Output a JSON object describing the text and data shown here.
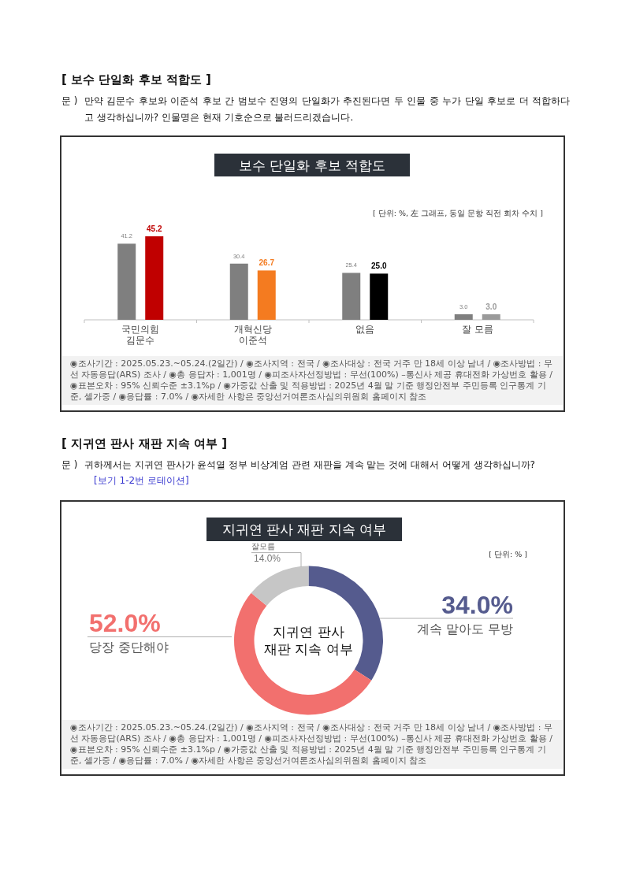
{
  "chart_data": [
    {
      "type": "bar",
      "title": "보수 단일화 후보 적합도",
      "annotations": [
        "[ 보수 단일화 후보 적합도 ]",
        "문 )",
        "만약 김문수 후보와 이준석 후보 간 범보수 진영의 단일화가 추진된다면 두 인물 중 누가 단일 후보로 더 적합하다고 생각하십니까? 인물명은 현재 기호순으로 불러드리겠습니다.",
        "[ 단위: %, 左 그래프, 동일 문항 직전 회차 수치 ]",
        "◉조사기간 : 2025.05.23.~05.24.(2일간) / ◉조사지역 : 전국 / ◉조사대상 : 전국 거주 만 18세 이상 남녀 / ◉조사방법 : 무선 자동응답(ARS) 조사 / ◉총 응답자 : 1,001명 / ◉피조사자선정방법 : 무선(100%) –통신사 제공 휴대전화 가상번호 활용 / ◉표본오차 : 95% 신뢰수준 ±3.1%p / ◉가중값 산출 및 적용방법 : 2025년 4월 말 기준 행정안전부 주민등록 인구통계 기준, 셀가중 / ◉응답률 : 7.0% / ◉자세한 사항은 중앙선거여론조사심의위원회 홈페이지 참조"
      ],
      "categories": [
        "국민의힘\n김문수",
        "개혁신당\n이준석",
        "없음",
        "잘 모름"
      ],
      "series": [
        {
          "color": "#7f7f7f",
          "values": [
            41.2,
            30.4,
            25.4,
            3.0
          ],
          "value_labels": [
            "41.2",
            "30.4",
            "25.4",
            "3.0"
          ]
        },
        {
          "colors": [
            "#c00000",
            "#f47b20",
            "#000000",
            "#9a9a9a"
          ],
          "values": [
            45.2,
            26.7,
            25.0,
            3.0
          ],
          "value_labels": [
            "45.2",
            "26.7",
            "25.0",
            "3.0"
          ]
        }
      ]
    },
    {
      "type": "donut",
      "title": "지귀연 판사 재판 지속 여부",
      "annotations": [
        "[ 지귀연 판사 재판 지속 여부 ]",
        "문 )",
        "귀하께서는 지귀연 판사가 윤석열 정부 비상계엄 관련 재판을 계속 맡는 것에 대해서 어떻게 생각하십니까?",
        "[보기 1-2번 로테이션]",
        "[ 단위: % ]",
        "지귀연 판사\n재판 지속 여부",
        "◉조사기간 : 2025.05.23.~05.24.(2일간) / ◉조사지역 : 전국 / ◉조사대상 : 전국 거주 만 18세 이상 남녀 / ◉조사방법 : 무선 자동응답(ARS) 조사 / ◉총 응답자 : 1,001명 / ◉피조사자선정방법 : 무선(100%) –통신사 제공 휴대전화 가상번호 활용 / ◉표본오차 : 95% 신뢰수준 ±3.1%p / ◉가중값 산출 및 적용방법 : 2025년 4월 말 기준 행정안전부 주민등록 인구통계 기준, 셀가중 / ◉응답률 : 7.0% / ◉자세한 사항은 중앙선거여론조사심의위원회 홈페이지 참조"
      ],
      "categories": [
        "계속 맡아도 무방",
        "당장 중단해야",
        "잘모름"
      ],
      "values": [
        34.0,
        52.0,
        14.0
      ],
      "colors": [
        "#555b8e",
        "#f2706e",
        "#c6c6c6"
      ],
      "value_labels": [
        "34.0%",
        "52.0%",
        "14.0%"
      ]
    }
  ]
}
